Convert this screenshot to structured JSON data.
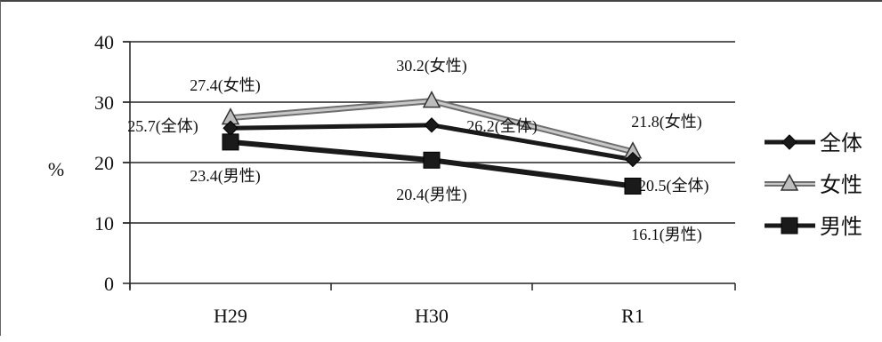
{
  "chart_data": {
    "type": "line",
    "ylabel": "%",
    "categories": [
      "H29",
      "H30",
      "R1"
    ],
    "ylim": [
      0,
      40
    ],
    "yticks": [
      0,
      10,
      20,
      30,
      40
    ],
    "grid": true,
    "legend_position": "right",
    "series": [
      {
        "name": "全体",
        "values": [
          25.7,
          26.2,
          20.5
        ],
        "color": "#1a1a1a",
        "marker": "diamond"
      },
      {
        "name": "女性",
        "values": [
          27.4,
          30.2,
          21.8
        ],
        "color": "#7a7a7a",
        "marker": "triangle"
      },
      {
        "name": "男性",
        "values": [
          23.4,
          20.4,
          16.1
        ],
        "color": "#1a1a1a",
        "marker": "square"
      }
    ],
    "data_labels": [
      [
        "25.7(全体)",
        "26.2(全体)",
        "20.5(全体)"
      ],
      [
        "27.4(女性)",
        "30.2(女性)",
        "21.8(女性)"
      ],
      [
        "23.4(男性)",
        "20.4(男性)",
        "16.1(男性)"
      ]
    ]
  }
}
